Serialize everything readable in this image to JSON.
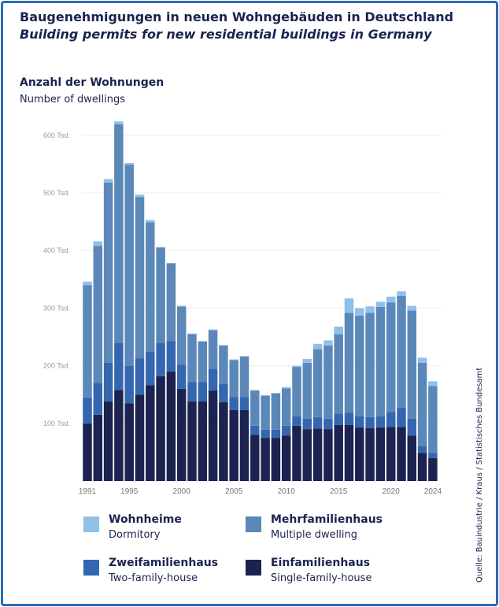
{
  "title_de": "Baugenehmigungen in neuen Wohngebäuden in Deutschland",
  "title_en": "Building permits for new residential buildings in Germany",
  "subtitle_de": "Anzahl der Wohnungen",
  "subtitle_en": "Number of dwellings",
  "source": "Quelle: Bauindustrie / Kraus / Statistisches Bundesamt",
  "legend": [
    {
      "de": "Wohnheime",
      "en": "Dormitory",
      "color": "#8fc0e8"
    },
    {
      "de": "Mehrfamilienhaus",
      "en": "Multiple dwelling",
      "color": "#5b88b8"
    },
    {
      "de": "Zweifamilienhaus",
      "en": "Two-family-house",
      "color": "#3566b0"
    },
    {
      "de": "Einfamilienhaus",
      "en": "Single-family-house",
      "color": "#1c2350"
    }
  ],
  "chart_data": {
    "type": "bar",
    "stacked": true,
    "ylim": [
      0,
      630
    ],
    "yticks": [
      100,
      200,
      300,
      400,
      500,
      600
    ],
    "ytick_labels": [
      "100 Tsd.",
      "200 Tsd.",
      "300 Tsd.",
      "400 Tsd.",
      "500 Tsd.",
      "600 Tsd."
    ],
    "grid": true,
    "xtick_labels": [
      "1991",
      "1995",
      "2000",
      "2005",
      "2010",
      "2015",
      "2020",
      "2024"
    ],
    "categories": [
      "1991",
      "1992",
      "1993",
      "1994",
      "1995",
      "1996",
      "1997",
      "1998",
      "1999",
      "2000",
      "2001",
      "2002",
      "2003",
      "2004",
      "2005",
      "2006",
      "2007",
      "2008",
      "2009",
      "2010",
      "2011",
      "2012",
      "2013",
      "2014",
      "2015",
      "2016",
      "2017",
      "2018",
      "2019",
      "2020",
      "2021",
      "2022",
      "2023",
      "2024"
    ],
    "series": [
      {
        "name": "Einfamilienhaus",
        "color": "#1c2350",
        "values": [
          100,
          115,
          138,
          158,
          135,
          150,
          166,
          182,
          190,
          160,
          138,
          138,
          157,
          137,
          123,
          123,
          80,
          75,
          75,
          79,
          96,
          90,
          91,
          90,
          97,
          97,
          93,
          92,
          93,
          94,
          94,
          79,
          49,
          40
        ]
      },
      {
        "name": "Zweifamilienhaus",
        "color": "#3566b0",
        "values": [
          45,
          55,
          67,
          82,
          65,
          63,
          59,
          58,
          53,
          42,
          34,
          34,
          37,
          31,
          23,
          23,
          16,
          14,
          14,
          17,
          16,
          18,
          20,
          18,
          20,
          22,
          20,
          19,
          19,
          26,
          33,
          29,
          12,
          9
        ]
      },
      {
        "name": "Mehrfamilienhaus",
        "color": "#5b88b8",
        "values": [
          195,
          238,
          313,
          379,
          349,
          280,
          224,
          165,
          135,
          101,
          83,
          70,
          68,
          67,
          64,
          70,
          61,
          59,
          63,
          65,
          86,
          97,
          118,
          127,
          138,
          173,
          174,
          181,
          190,
          190,
          194,
          188,
          144,
          116
        ]
      },
      {
        "name": "Wohnheime",
        "color": "#8fc0e8",
        "values": [
          6,
          8,
          6,
          5,
          3,
          4,
          4,
          1,
          0,
          1,
          1,
          1,
          1,
          1,
          1,
          1,
          1,
          1,
          1,
          2,
          2,
          7,
          9,
          9,
          13,
          25,
          13,
          11,
          9,
          10,
          8,
          8,
          9,
          8
        ]
      }
    ]
  }
}
